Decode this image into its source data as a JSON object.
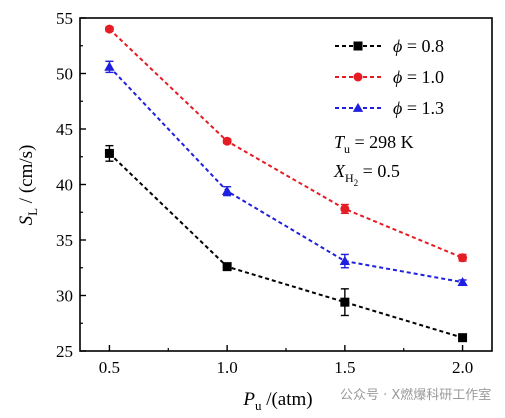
{
  "chart_data": {
    "type": "line",
    "x": [
      0.5,
      1.0,
      1.5,
      2.0
    ],
    "xlim": [
      0.375,
      2.125
    ],
    "ylim": [
      25,
      55
    ],
    "xticks": [
      "0.5",
      "1.0",
      "1.5",
      "2.0"
    ],
    "yticks": [
      "25",
      "30",
      "35",
      "40",
      "45",
      "50",
      "55"
    ],
    "xlabel": {
      "main": "P",
      "sub": "u",
      "rest": " /(atm)"
    },
    "ylabel": {
      "main": "S",
      "sub": "L",
      "rest": " / (cm/s)"
    },
    "grid": false,
    "legend_position": "top-right",
    "series": [
      {
        "name": "ϕ = 0.8",
        "color": "#000000",
        "marker": "square",
        "values": [
          42.8,
          32.6,
          29.4,
          26.2
        ],
        "errors": [
          0.7,
          0.3,
          1.2,
          0.3
        ]
      },
      {
        "name": "ϕ = 1.0",
        "color": "#e51c23",
        "marker": "circle",
        "values": [
          54.0,
          43.9,
          37.8,
          33.4
        ],
        "errors": [
          0.2,
          0.2,
          0.4,
          0.3
        ]
      },
      {
        "name": "ϕ = 1.3",
        "color": "#1f1fe0",
        "marker": "triangle",
        "values": [
          50.6,
          39.4,
          33.1,
          31.2
        ],
        "errors": [
          0.5,
          0.4,
          0.6,
          0.2
        ]
      }
    ],
    "annotations": [
      {
        "main": "T",
        "sub": "u",
        "rest": " = 298 K"
      },
      {
        "main": "X",
        "sub": "H",
        "sub2": "2",
        "rest": " = 0.5"
      }
    ]
  },
  "watermark": "公众号 · X燃爆科研工作室"
}
